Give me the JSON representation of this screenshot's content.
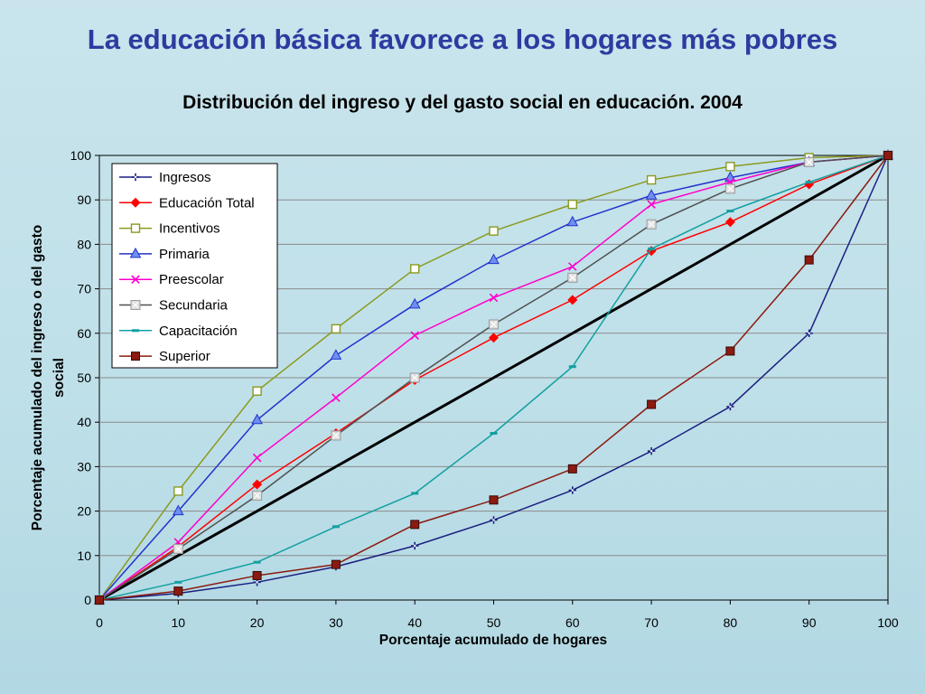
{
  "slide": {
    "title": "La educación básica favorece a los hogares más pobres"
  },
  "colors": {
    "background": "#c2e1ea",
    "title": "#2f3aa0",
    "diagonal": "#000000"
  },
  "chart_data": {
    "type": "line",
    "title": "Distribución del ingreso y del gasto social en educación. 2004",
    "xlabel": "Porcentaje acumulado de hogares",
    "ylabel": "Porcentaje acumulado del ingreso o del gasto social",
    "ylabel_lines": [
      "Porcentaje acumulado del ingreso o del gasto",
      "social"
    ],
    "x": [
      0,
      10,
      20,
      30,
      40,
      50,
      60,
      70,
      80,
      90,
      100
    ],
    "xlim": [
      0,
      100
    ],
    "ylim": [
      0,
      100
    ],
    "xticks": [
      "0",
      "10",
      "20",
      "30",
      "40",
      "50",
      "60",
      "70",
      "80",
      "90",
      "100"
    ],
    "yticks": [
      "0",
      "10",
      "20",
      "30",
      "40",
      "50",
      "60",
      "70",
      "80",
      "90",
      "100"
    ],
    "grid": true,
    "legend_position": "top-left",
    "equality_line": [
      [
        0,
        0
      ],
      [
        100,
        100
      ]
    ],
    "series": [
      {
        "name": "Ingresos",
        "color": "#1c1f80",
        "marker": "plus",
        "values": [
          0,
          1.5,
          4,
          7.5,
          12.2,
          18,
          24.7,
          33.5,
          43.5,
          60,
          100
        ]
      },
      {
        "name": "Educación Total",
        "color": "#ff0000",
        "marker": "diamond",
        "values": [
          0,
          12,
          26,
          37.5,
          49.5,
          59,
          67.5,
          78.5,
          85,
          93.5,
          100
        ]
      },
      {
        "name": "Incentivos",
        "color": "#8a9a1e",
        "marker": "square-open",
        "values": [
          0,
          24.5,
          47,
          61,
          74.5,
          83,
          89,
          94.5,
          97.5,
          99.5,
          100
        ]
      },
      {
        "name": "Primaria",
        "color": "#2233cc",
        "marker": "triangle",
        "values": [
          0,
          20,
          40.5,
          55,
          66.5,
          76.5,
          85,
          91,
          95,
          98.5,
          100
        ]
      },
      {
        "name": "Preescolar",
        "color": "#ff00cc",
        "marker": "x",
        "values": [
          0,
          13,
          32,
          45.5,
          59.5,
          68,
          75,
          89,
          94,
          98.5,
          100
        ]
      },
      {
        "name": "Secundaria",
        "color": "#505050",
        "marker": "square-light",
        "values": [
          0,
          11.5,
          23.5,
          37,
          50,
          62,
          72.5,
          84.5,
          92.5,
          98.5,
          100
        ]
      },
      {
        "name": "Capacitación",
        "color": "#13a0a0",
        "marker": "dash",
        "values": [
          0,
          4,
          8.5,
          16.5,
          24,
          37.5,
          52.5,
          79,
          87.5,
          94,
          100
        ]
      },
      {
        "name": "Superior",
        "color": "#8b1a10",
        "marker": "square-filled",
        "values": [
          0,
          2,
          5.5,
          8,
          17,
          22.5,
          29.5,
          44,
          56,
          76.5,
          100
        ]
      }
    ]
  }
}
